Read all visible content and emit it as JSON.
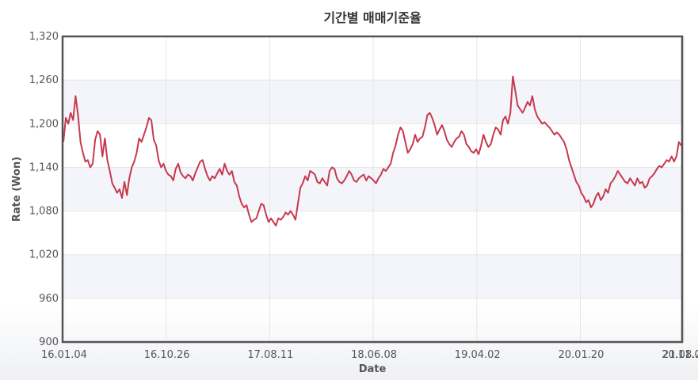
{
  "chart_data": {
    "type": "line",
    "title": "기간별 매매기준율",
    "xlabel": "Date",
    "ylabel": "Rate (Won)",
    "ylim": [
      900,
      1320
    ],
    "y_ticks": [
      "900",
      "960",
      "1,020",
      "1,080",
      "1,140",
      "1,200",
      "1,260",
      "1,320"
    ],
    "x_tick_labels": [
      "16.01.04",
      "16.10.26",
      "17.08.11",
      "18.06.08",
      "19.04.02",
      "20.01.20",
      "20.11.09",
      "21.08.2"
    ],
    "grid": true,
    "series": [
      {
        "values": [
          1175,
          1208,
          1200,
          1215,
          1205,
          1238,
          1212,
          1175,
          1160,
          1148,
          1150,
          1140,
          1145,
          1178,
          1190,
          1185,
          1155,
          1180,
          1150,
          1135,
          1118,
          1112,
          1105,
          1110,
          1098,
          1120,
          1102,
          1125,
          1140,
          1148,
          1160,
          1180,
          1175,
          1185,
          1195,
          1208,
          1205,
          1178,
          1170,
          1150,
          1140,
          1145,
          1135,
          1130,
          1128,
          1122,
          1138,
          1145,
          1133,
          1128,
          1125,
          1130,
          1128,
          1122,
          1132,
          1140,
          1148,
          1150,
          1138,
          1128,
          1122,
          1128,
          1125,
          1132,
          1138,
          1130,
          1145,
          1135,
          1130,
          1135,
          1120,
          1115,
          1100,
          1090,
          1085,
          1088,
          1075,
          1065,
          1068,
          1070,
          1080,
          1090,
          1088,
          1075,
          1065,
          1070,
          1065,
          1060,
          1070,
          1068,
          1072,
          1078,
          1075,
          1080,
          1075,
          1068,
          1090,
          1112,
          1118,
          1128,
          1122,
          1135,
          1133,
          1130,
          1120,
          1118,
          1125,
          1120,
          1115,
          1135,
          1140,
          1138,
          1125,
          1120,
          1118,
          1122,
          1128,
          1135,
          1130,
          1122,
          1120,
          1125,
          1128,
          1130,
          1122,
          1128,
          1125,
          1122,
          1118,
          1125,
          1130,
          1138,
          1135,
          1140,
          1145,
          1160,
          1170,
          1185,
          1195,
          1190,
          1175,
          1160,
          1165,
          1172,
          1185,
          1175,
          1180,
          1182,
          1195,
          1212,
          1215,
          1208,
          1198,
          1185,
          1192,
          1198,
          1190,
          1178,
          1172,
          1168,
          1175,
          1180,
          1182,
          1190,
          1185,
          1172,
          1168,
          1162,
          1160,
          1165,
          1158,
          1170,
          1185,
          1175,
          1168,
          1172,
          1185,
          1195,
          1192,
          1185,
          1205,
          1210,
          1200,
          1215,
          1265,
          1245,
          1225,
          1220,
          1215,
          1222,
          1230,
          1225,
          1238,
          1220,
          1210,
          1205,
          1200,
          1202,
          1198,
          1195,
          1190,
          1185,
          1188,
          1185,
          1180,
          1175,
          1165,
          1150,
          1140,
          1130,
          1120,
          1115,
          1105,
          1100,
          1092,
          1095,
          1085,
          1090,
          1100,
          1105,
          1095,
          1100,
          1110,
          1105,
          1118,
          1122,
          1128,
          1135,
          1130,
          1125,
          1120,
          1118,
          1125,
          1120,
          1115,
          1125,
          1118,
          1120,
          1112,
          1115,
          1125,
          1128,
          1132,
          1138,
          1142,
          1140,
          1145,
          1150,
          1148,
          1155,
          1148,
          1155,
          1175,
          1170
        ]
      }
    ]
  },
  "colors": {
    "line": "#c8394f",
    "grid": "#e6e6e6",
    "band": "#f3f5fa",
    "frame": "#555555"
  }
}
